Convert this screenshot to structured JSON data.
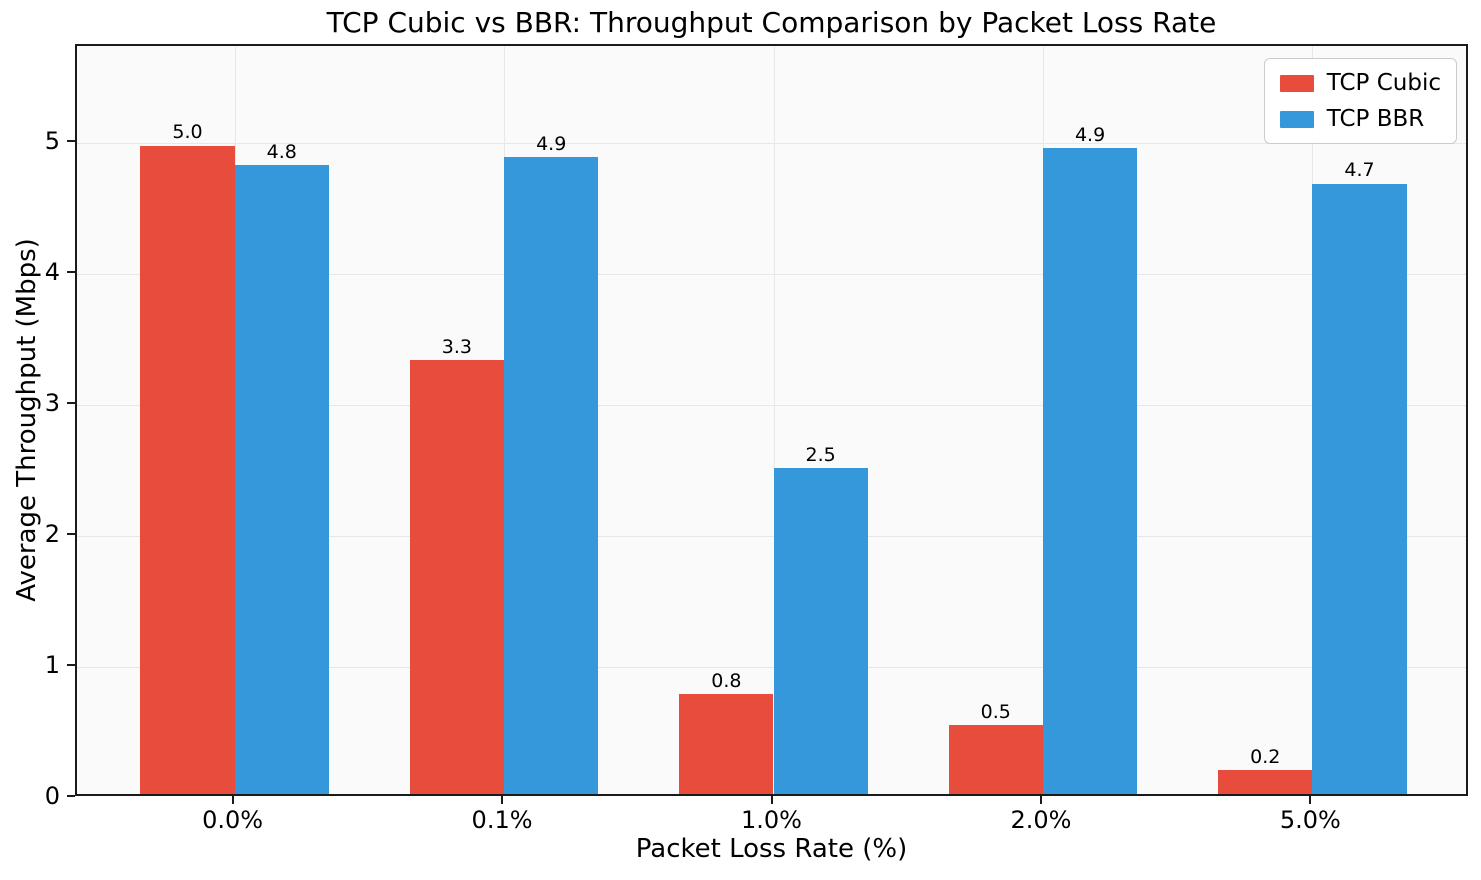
{
  "chart_data": {
    "type": "bar",
    "title": "TCP Cubic vs BBR: Throughput Comparison by Packet Loss Rate",
    "xlabel": "Packet Loss Rate (%)",
    "ylabel": "Average Throughput (Mbps)",
    "categories": [
      "0.0%",
      "0.1%",
      "1.0%",
      "2.0%",
      "5.0%"
    ],
    "series": [
      {
        "name": "TCP Cubic",
        "color": "#e74c3c",
        "values": [
          5.0,
          3.3,
          0.8,
          0.5,
          0.2
        ],
        "value_labels": [
          "5.0",
          "3.3",
          "0.8",
          "0.5",
          "0.2"
        ],
        "values_precise": [
          4.95,
          3.31,
          0.76,
          0.53,
          0.18
        ]
      },
      {
        "name": "TCP BBR",
        "color": "#3498db",
        "values": [
          4.8,
          4.9,
          2.5,
          4.9,
          4.7
        ],
        "value_labels": [
          "4.8",
          "4.9",
          "2.5",
          "4.9",
          "4.7"
        ],
        "values_precise": [
          4.8,
          4.86,
          2.49,
          4.93,
          4.66
        ]
      }
    ],
    "y_ticks": [
      0,
      1,
      2,
      3,
      4,
      5
    ],
    "ylim": [
      0,
      5.74
    ],
    "grid": true,
    "legend_position": "upper right",
    "plot_background": "#fafafa",
    "grid_color": "#e7e7e7"
  }
}
